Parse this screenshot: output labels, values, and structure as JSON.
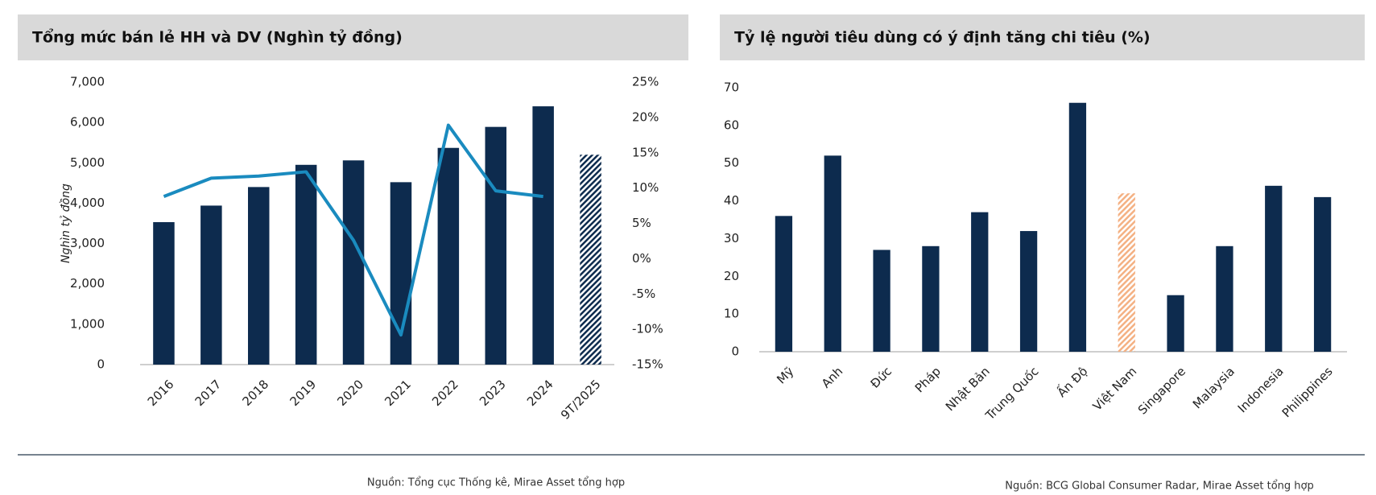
{
  "chart_data": [
    {
      "type": "bar",
      "title": "Tổng mức bán lẻ HH và DV (Nghìn tỷ đồng)",
      "y_label": "Nghìn tỷ đồng",
      "categories": [
        "2016",
        "2017",
        "2018",
        "2019",
        "2020",
        "2021",
        "2022",
        "2023",
        "2024",
        "9T/2025"
      ],
      "series": [
        {
          "type": "bar",
          "color": "#0d2b4e",
          "values": [
            3530,
            3940,
            4400,
            4950,
            5060,
            4520,
            5370,
            5890,
            6400,
            5200
          ],
          "hatched": [
            false,
            false,
            false,
            false,
            false,
            false,
            false,
            false,
            false,
            true
          ]
        },
        {
          "type": "line",
          "axis": "y2",
          "color": "#1a8bbf",
          "values": [
            8.8,
            11.4,
            11.7,
            12.3,
            2.6,
            -10.8,
            18.9,
            9.6,
            8.8,
            null
          ]
        }
      ],
      "ylim": [
        0,
        7000
      ],
      "yticks": [
        0,
        {
          "value": 1000,
          "label": "1,000"
        },
        {
          "value": 2000,
          "label": "2,000"
        },
        {
          "value": 3000,
          "label": "3,000"
        },
        {
          "value": 4000,
          "label": "4,000"
        },
        {
          "value": 5000,
          "label": "5,000"
        },
        {
          "value": 6000,
          "label": "6,000"
        },
        {
          "value": 7000,
          "label": "7,000"
        }
      ],
      "y2lim": [
        -15,
        25
      ],
      "y2ticks": [
        {
          "value": -15,
          "label": "-15%"
        },
        {
          "value": -10,
          "label": "-10%"
        },
        {
          "value": -5,
          "label": "-5%"
        },
        {
          "value": 0,
          "label": "0%"
        },
        {
          "value": 5,
          "label": "5%"
        },
        {
          "value": 10,
          "label": "10%"
        },
        {
          "value": 15,
          "label": "15%"
        },
        {
          "value": 20,
          "label": "20%"
        },
        {
          "value": 25,
          "label": "25%"
        }
      ],
      "grid": false,
      "source": "Nguồn: Tổng cục Thống kê, Mirae Asset tổng hợp"
    },
    {
      "type": "bar",
      "title": "Tỷ lệ người tiêu dùng có ý định tăng chi tiêu (%)",
      "categories": [
        "Mỹ",
        "Anh",
        "Đức",
        "Pháp",
        "Nhật Bản",
        "Trung Quốc",
        "Ấn Độ",
        "Việt Nam",
        "Singapore",
        "Malaysia",
        "Indonesia",
        "Philippines"
      ],
      "series": [
        {
          "type": "bar",
          "color": "#0d2b4e",
          "values": [
            36,
            52,
            27,
            28,
            37,
            32,
            66,
            42,
            15,
            28,
            44,
            41
          ],
          "hatched": [
            false,
            false,
            false,
            false,
            false,
            false,
            false,
            true,
            false,
            false,
            false,
            false
          ],
          "hatch_color": "#f4b183"
        }
      ],
      "ylim": [
        0,
        70
      ],
      "yticks": [
        0,
        10,
        20,
        30,
        40,
        50,
        60,
        70
      ],
      "grid": false,
      "source": "Nguồn: BCG Global Consumer Radar, Mirae Asset tổng hợp"
    }
  ]
}
